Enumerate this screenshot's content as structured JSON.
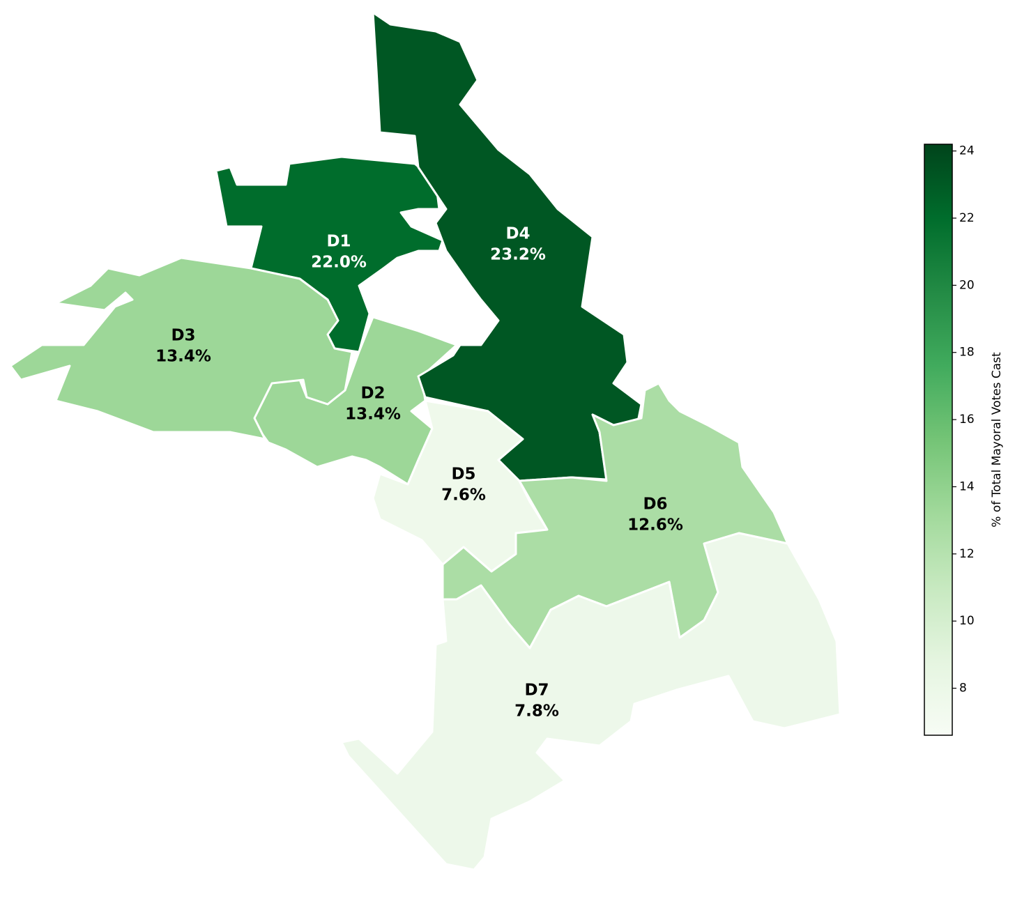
{
  "chart_data": {
    "type": "choropleth",
    "categories": [
      "D1",
      "D2",
      "D3",
      "D4",
      "D5",
      "D6",
      "D7"
    ],
    "values": [
      22.0,
      13.4,
      13.4,
      23.2,
      7.6,
      12.6,
      7.8
    ],
    "value_labels": [
      "22.0%",
      "13.4%",
      "13.4%",
      "23.2%",
      "7.6%",
      "12.6%",
      "7.8%"
    ],
    "colormap": "Greens",
    "colorbar_label": "% of Total Mayoral Votes Cast",
    "clim": [
      6.6,
      24.2
    ],
    "cticks": [
      8,
      10,
      12,
      14,
      16,
      18,
      20,
      22,
      24
    ]
  }
}
